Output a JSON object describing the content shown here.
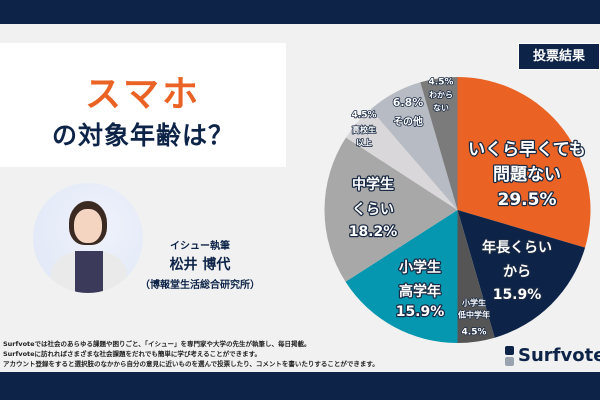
{
  "title": {
    "line1": "スマホ",
    "line2": "の対象年齢は？"
  },
  "author": {
    "role": "イシュー執筆",
    "name": "松井 博代",
    "org": "（博報堂生活総合研究所）"
  },
  "badge": "投票結果",
  "footer": [
    "Surfvoteでは社会のあらゆる課題や困りごと、「イシュー」を専門家や大学の先生が執筆し、毎日掲載。",
    "Surfvoteに訪れればさまざまな社会課題をだれでも簡単に学び考えることができます。",
    "アカウント登録をすると選択肢のなかから自分の意見に近いものを選んで投票したり、コメントを書いたりすることができます。"
  ],
  "logo": "Surfvote",
  "chart_data": {
    "type": "pie",
    "start": "top",
    "direction": "clockwise",
    "slices": [
      {
        "label": [
          "いくら早くても",
          "問題ない"
        ],
        "value": 29.5,
        "value_label": "29.5%",
        "color": "#ea6224"
      },
      {
        "label": [
          "年長くらい",
          "から"
        ],
        "value": 15.9,
        "value_label": "15.9%",
        "color": "#0d2448"
      },
      {
        "label": [
          "小学生",
          "低中学年"
        ],
        "value": 4.5,
        "value_label": "4.5%",
        "color": "#555555"
      },
      {
        "label": [
          "小学生",
          "高学年"
        ],
        "value": 15.9,
        "value_label": "15.9%",
        "color": "#0596b0"
      },
      {
        "label": [
          "中学生",
          "くらい"
        ],
        "value": 18.2,
        "value_label": "18.2%",
        "color": "#a8a8a8"
      },
      {
        "label": [
          "高校生",
          "以上"
        ],
        "value": 4.5,
        "value_label": "4.5%",
        "color": "#d9d7da"
      },
      {
        "label": [
          "その他"
        ],
        "value": 6.8,
        "value_label": "6.8%",
        "color": "#b7bbc3"
      },
      {
        "label": [
          "わから",
          "ない"
        ],
        "value": 4.5,
        "value_label": "4.5%",
        "color": "#7b7b7b"
      }
    ]
  }
}
